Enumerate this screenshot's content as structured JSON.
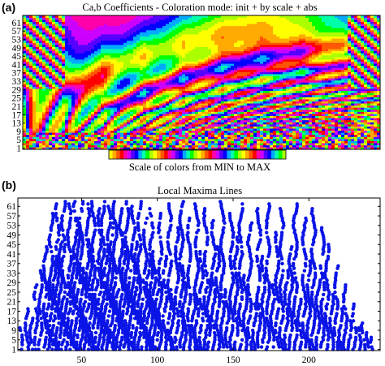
{
  "figure": {
    "panel_a_label": "(a)",
    "panel_b_label": "(b)",
    "colorbar_caption": "Scale of colors from MIN to MAX"
  },
  "chart_data": [
    {
      "type": "heatmap",
      "title": "Ca,b Coefficients - Coloration mode: init + by scale + abs",
      "xlabel": "",
      "ylabel": "",
      "ylim": [
        1,
        64
      ],
      "yticks": [
        1,
        5,
        9,
        13,
        17,
        21,
        25,
        29,
        33,
        37,
        41,
        45,
        49,
        53,
        57,
        61
      ],
      "xlim": [
        1,
        256
      ],
      "scale_positions": 256,
      "num_scales": 64,
      "colorbar": {
        "caption": "Scale of colors from MIN to MAX",
        "colors": [
          "#ffff00",
          "#ffaa00",
          "#ff5500",
          "#ff0000",
          "#ff00aa",
          "#cc00ff",
          "#5500ff",
          "#0000ff",
          "#00aaff",
          "#00ffaa",
          "#00ff00",
          "#aaff00"
        ]
      },
      "palette": [
        "#ff0000",
        "#ff5500",
        "#ffaa00",
        "#ffff00",
        "#aaff00",
        "#00ff00",
        "#00ffaa",
        "#00aaff",
        "#0000ff",
        "#5500ff",
        "#cc00ff",
        "#ff00aa"
      ],
      "grid": false
    },
    {
      "type": "scatter",
      "title": "Local Maxima Lines",
      "xlabel": "",
      "ylabel": "",
      "xlim": [
        8,
        247
      ],
      "ylim": [
        1,
        64
      ],
      "xticks": [
        50,
        100,
        150,
        200
      ],
      "yticks": [
        1,
        5,
        9,
        13,
        17,
        21,
        25,
        29,
        33,
        37,
        41,
        45,
        49,
        53,
        57,
        61
      ],
      "marker_color": "#0a14e6",
      "grid": false,
      "lines": [
        {
          "x": 10,
          "top": 10
        },
        {
          "x": 14,
          "top": 18
        },
        {
          "x": 17,
          "top": 14
        },
        {
          "x": 20,
          "top": 28
        },
        {
          "x": 23,
          "top": 34
        },
        {
          "x": 26,
          "top": 44
        },
        {
          "x": 28,
          "top": 30
        },
        {
          "x": 30,
          "top": 58
        },
        {
          "x": 32,
          "top": 38
        },
        {
          "x": 34,
          "top": 62
        },
        {
          "x": 36,
          "top": 46
        },
        {
          "x": 38,
          "top": 63
        },
        {
          "x": 40,
          "top": 24
        },
        {
          "x": 42,
          "top": 62
        },
        {
          "x": 44,
          "top": 40
        },
        {
          "x": 46,
          "top": 63
        },
        {
          "x": 48,
          "top": 56
        },
        {
          "x": 50,
          "top": 63
        },
        {
          "x": 52,
          "top": 36
        },
        {
          "x": 54,
          "top": 62
        },
        {
          "x": 56,
          "top": 48
        },
        {
          "x": 58,
          "top": 63
        },
        {
          "x": 60,
          "top": 30
        },
        {
          "x": 62,
          "top": 60
        },
        {
          "x": 64,
          "top": 63
        },
        {
          "x": 66,
          "top": 42
        },
        {
          "x": 68,
          "top": 62
        },
        {
          "x": 70,
          "top": 54
        },
        {
          "x": 72,
          "top": 63
        },
        {
          "x": 74,
          "top": 26
        },
        {
          "x": 76,
          "top": 60
        },
        {
          "x": 78,
          "top": 50
        },
        {
          "x": 80,
          "top": 63
        },
        {
          "x": 82,
          "top": 34
        },
        {
          "x": 84,
          "top": 62
        },
        {
          "x": 86,
          "top": 46
        },
        {
          "x": 88,
          "top": 63
        },
        {
          "x": 90,
          "top": 22
        },
        {
          "x": 92,
          "top": 56
        },
        {
          "x": 94,
          "top": 38
        },
        {
          "x": 96,
          "top": 60
        },
        {
          "x": 98,
          "top": 44
        },
        {
          "x": 100,
          "top": 30
        },
        {
          "x": 102,
          "top": 58
        },
        {
          "x": 105,
          "top": 40
        },
        {
          "x": 108,
          "top": 62
        },
        {
          "x": 110,
          "top": 28
        },
        {
          "x": 113,
          "top": 52
        },
        {
          "x": 116,
          "top": 63
        },
        {
          "x": 118,
          "top": 36
        },
        {
          "x": 121,
          "top": 56
        },
        {
          "x": 124,
          "top": 24
        },
        {
          "x": 126,
          "top": 62
        },
        {
          "x": 129,
          "top": 42
        },
        {
          "x": 132,
          "top": 60
        },
        {
          "x": 134,
          "top": 30
        },
        {
          "x": 137,
          "top": 56
        },
        {
          "x": 140,
          "top": 44
        },
        {
          "x": 143,
          "top": 63
        },
        {
          "x": 146,
          "top": 26
        },
        {
          "x": 149,
          "top": 58
        },
        {
          "x": 152,
          "top": 48
        },
        {
          "x": 155,
          "top": 62
        },
        {
          "x": 158,
          "top": 32
        },
        {
          "x": 161,
          "top": 54
        },
        {
          "x": 164,
          "top": 20
        },
        {
          "x": 167,
          "top": 60
        },
        {
          "x": 170,
          "top": 40
        },
        {
          "x": 173,
          "top": 62
        },
        {
          "x": 176,
          "top": 28
        },
        {
          "x": 179,
          "top": 50
        },
        {
          "x": 182,
          "top": 60
        },
        {
          "x": 185,
          "top": 34
        },
        {
          "x": 188,
          "top": 44
        },
        {
          "x": 191,
          "top": 62
        },
        {
          "x": 194,
          "top": 22
        },
        {
          "x": 197,
          "top": 56
        },
        {
          "x": 200,
          "top": 38
        },
        {
          "x": 203,
          "top": 60
        },
        {
          "x": 206,
          "top": 30
        },
        {
          "x": 209,
          "top": 52
        },
        {
          "x": 212,
          "top": 46
        },
        {
          "x": 215,
          "top": 24
        },
        {
          "x": 218,
          "top": 36
        },
        {
          "x": 221,
          "top": 18
        },
        {
          "x": 224,
          "top": 28
        },
        {
          "x": 227,
          "top": 14
        },
        {
          "x": 230,
          "top": 20
        },
        {
          "x": 233,
          "top": 10
        },
        {
          "x": 236,
          "top": 12
        },
        {
          "x": 239,
          "top": 8
        },
        {
          "x": 242,
          "top": 6
        }
      ]
    }
  ]
}
